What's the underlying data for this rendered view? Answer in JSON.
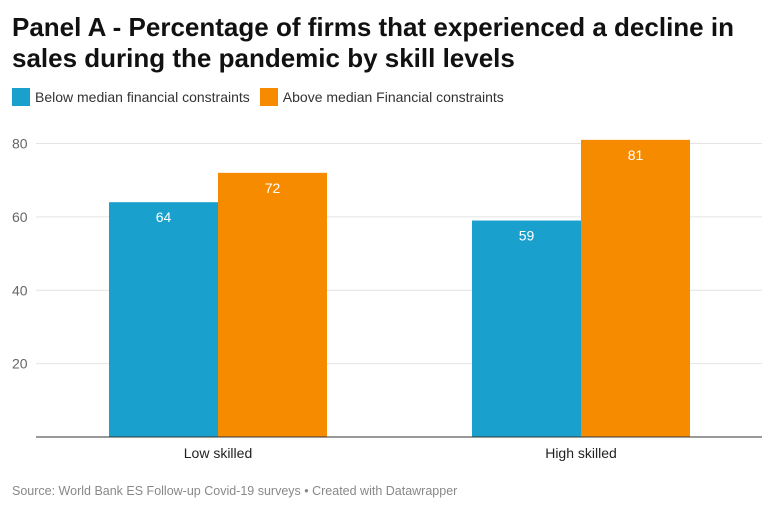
{
  "chart_data": {
    "type": "bar",
    "title": "Panel A - Percentage of firms that experienced a decline in sales during the pandemic by skill levels",
    "categories": [
      "Low skilled",
      "High skilled"
    ],
    "series": [
      {
        "name": "Below median financial constraints",
        "values": [
          64,
          59
        ],
        "color": "#1aa0cc"
      },
      {
        "name": "Above median Financial constraints",
        "values": [
          72,
          81
        ],
        "color": "#f78b00"
      }
    ],
    "yticks": [
      20,
      40,
      60,
      80
    ],
    "ylim": [
      0,
      80
    ],
    "grid": true,
    "legend_position": "top-left",
    "xlabel": "",
    "ylabel": ""
  },
  "source": "Source: World Bank ES Follow-up Covid-19 surveys • Created with Datawrapper"
}
